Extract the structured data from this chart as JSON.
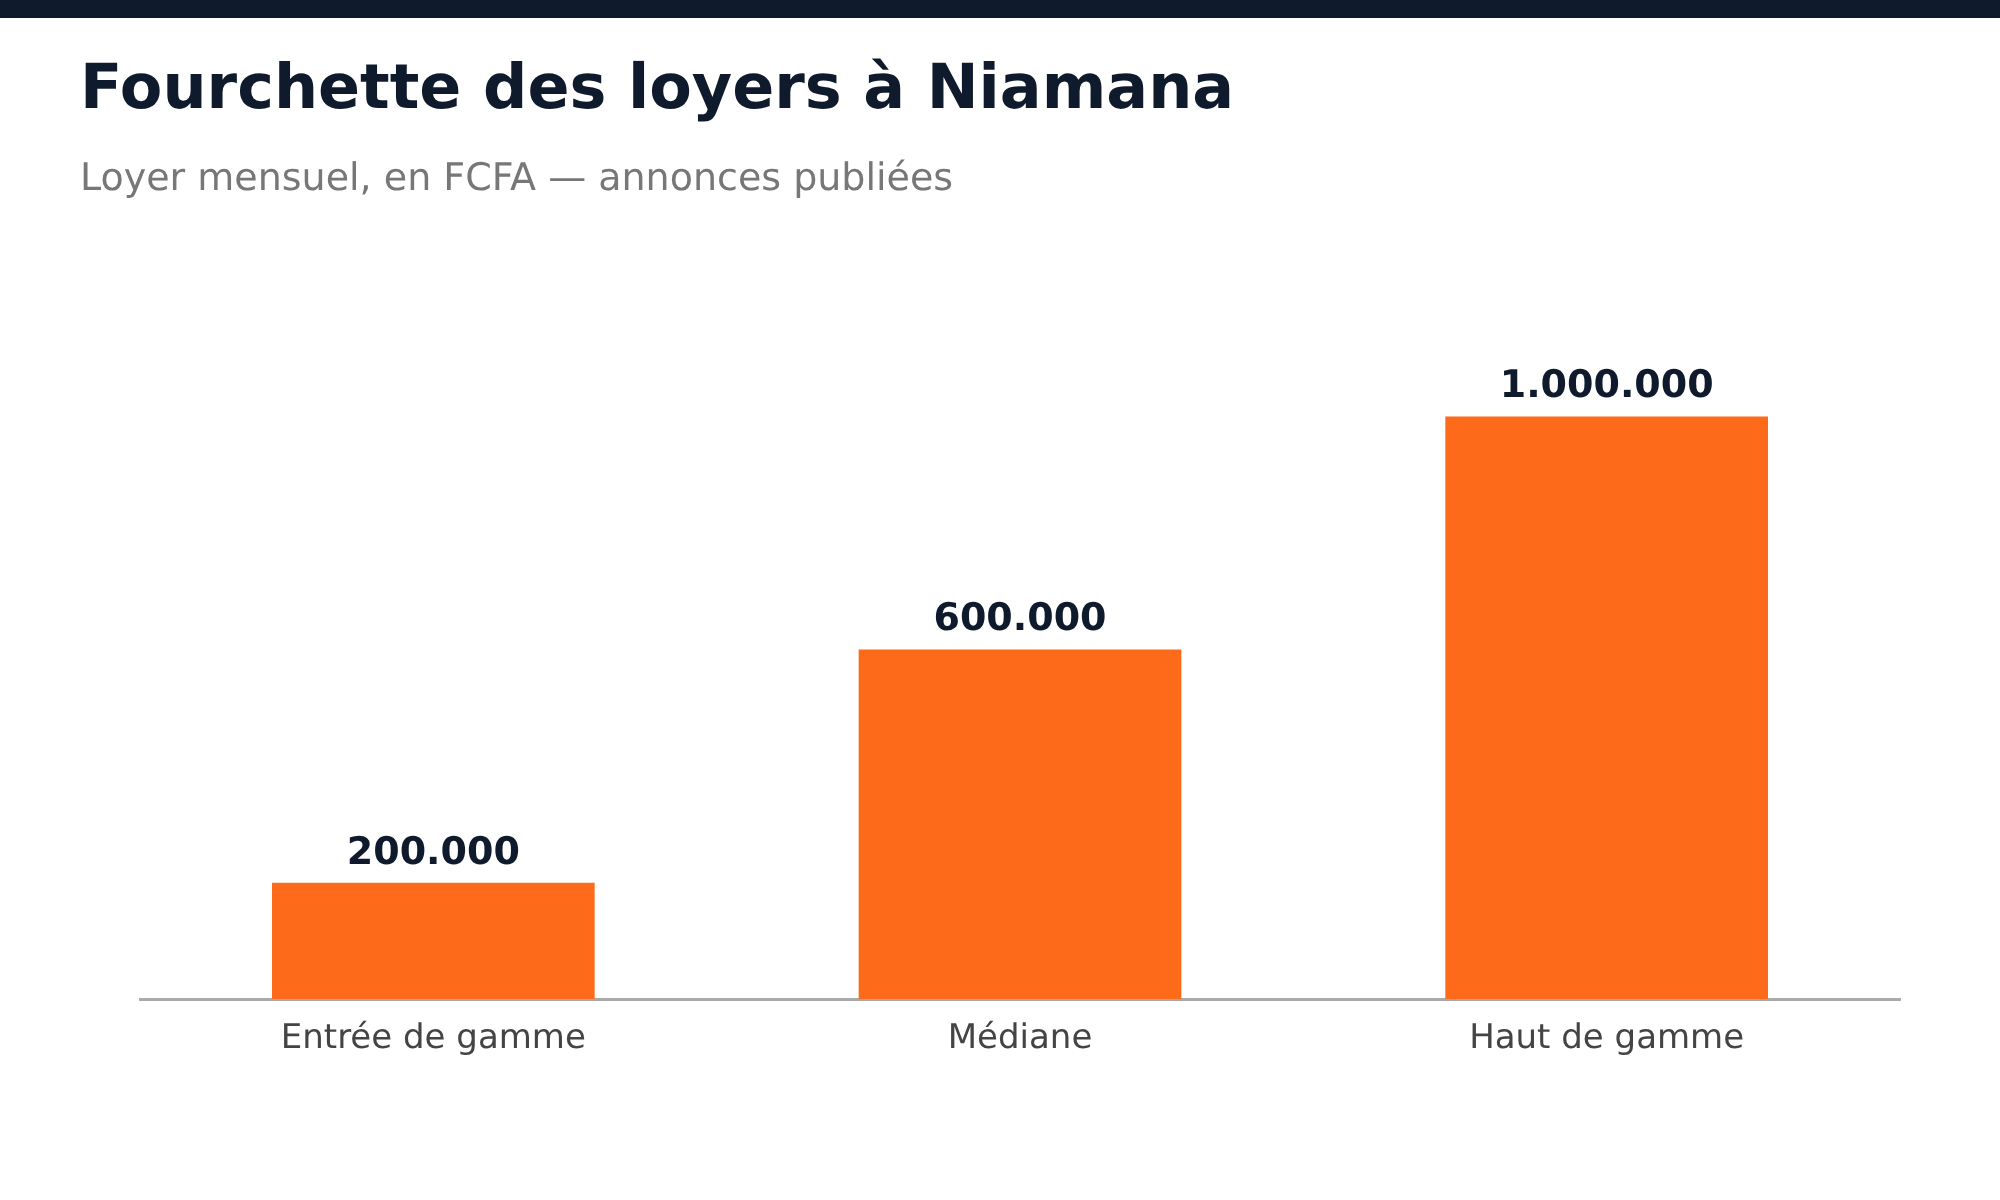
{
  "chart_data": {
    "type": "bar",
    "title": "Fourchette des loyers à Niamana",
    "subtitle": "Loyer mensuel, en FCFA — annonces publiées",
    "categories": [
      "Entrée de gamme",
      "Médiane",
      "Haut de gamme"
    ],
    "values": [
      200000,
      600000,
      1000000
    ],
    "value_labels": [
      "200.000",
      "600.000",
      "1.000.000"
    ],
    "color": "#fc6a1a",
    "grid": false,
    "legend": false,
    "tick_labels": "x"
  }
}
